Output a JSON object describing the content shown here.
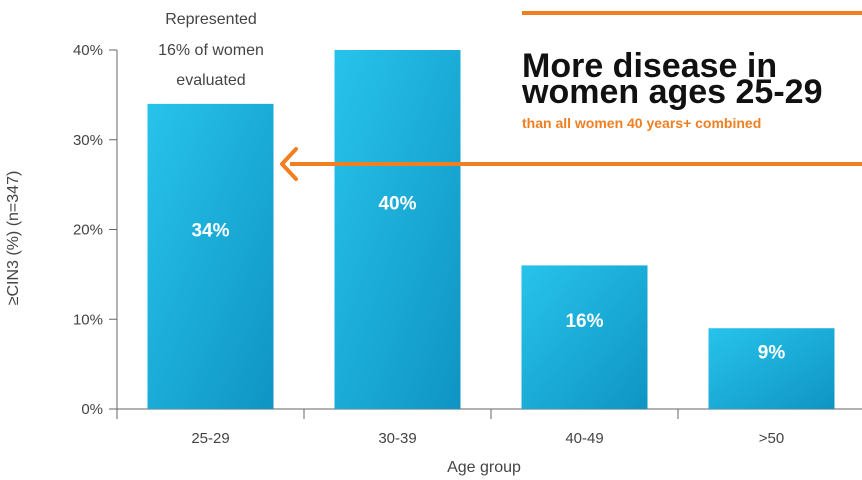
{
  "chart_data": {
    "type": "bar",
    "categories": [
      "25-29",
      "30-39",
      "40-49",
      ">50"
    ],
    "values": [
      34,
      40,
      16,
      9
    ],
    "value_labels": [
      "34%",
      "40%",
      "16%",
      "9%"
    ],
    "ylim": [
      0,
      40
    ],
    "yticks": [
      "0%",
      "10%",
      "20%",
      "30%",
      "40%"
    ],
    "xlabel": "Age group",
    "ylabel": "≥CIN3 (%) (n=347)",
    "grid": false,
    "bar_color_top": "#27c3ea",
    "bar_color_bottom": "#0f94c4"
  },
  "annotation": {
    "note_lines": [
      "Represented",
      "16% of women",
      "evaluated"
    ],
    "headline_lines": [
      "More disease in",
      "women ages 25-29"
    ],
    "subhead": "than all women 40 years+ combined",
    "accent_color": "#f07f21"
  }
}
